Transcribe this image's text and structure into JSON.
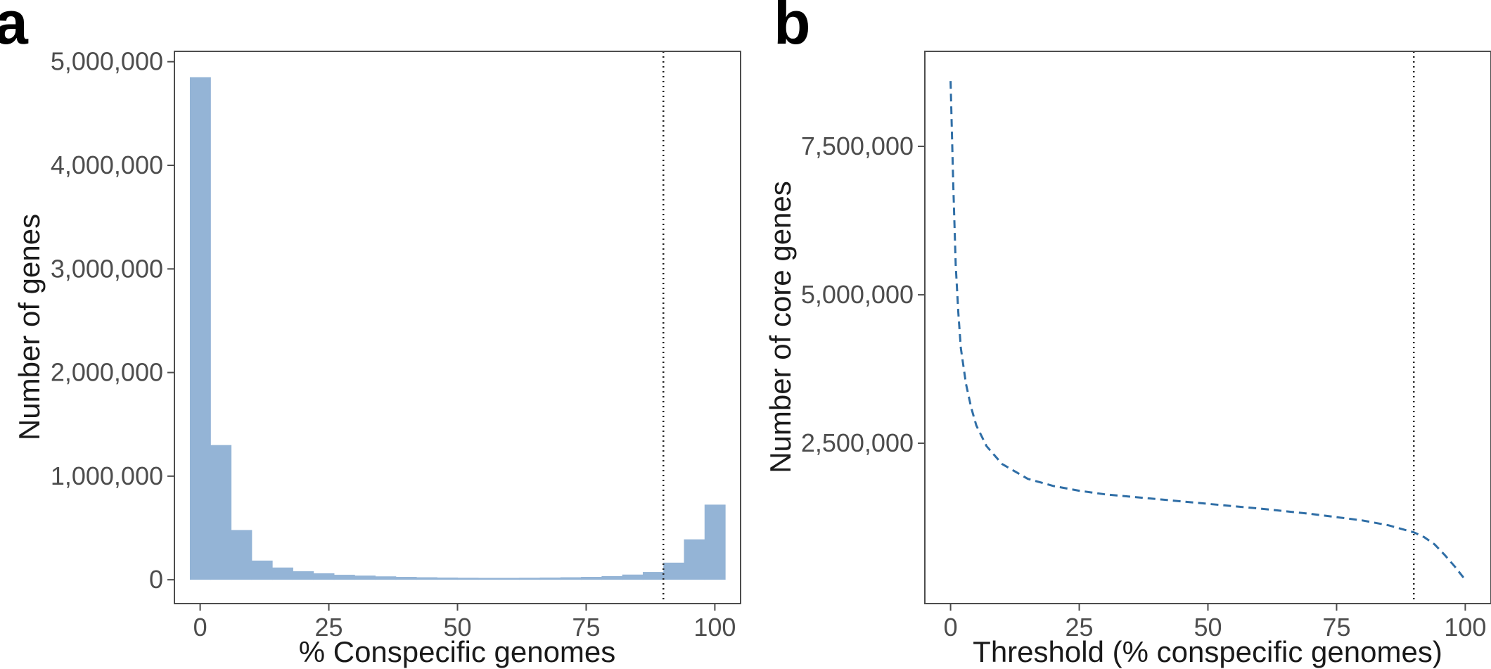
{
  "chart_data": [
    {
      "panel": "a",
      "type": "bar",
      "xlabel": "% Conspecific genomes",
      "ylabel": "Number of genes",
      "xlim": [
        -5,
        105
      ],
      "ylim": [
        -230000,
        5100000
      ],
      "xticks": [
        0,
        25,
        50,
        75,
        100
      ],
      "yticks": [
        0,
        1000000,
        2000000,
        3000000,
        4000000,
        5000000
      ],
      "ytick_labels": [
        "0",
        "1,000,000",
        "2,000,000",
        "3,000,000",
        "4,000,000",
        "5,000,000"
      ],
      "bin_width": 4,
      "bin_centers": [
        0,
        4,
        8,
        12,
        16,
        20,
        24,
        28,
        32,
        36,
        40,
        44,
        48,
        52,
        56,
        60,
        64,
        68,
        72,
        76,
        80,
        84,
        88,
        92,
        96,
        100
      ],
      "values": [
        4850000,
        1300000,
        480000,
        185000,
        118000,
        82000,
        62000,
        48000,
        40000,
        33000,
        28000,
        24000,
        21000,
        19000,
        18000,
        18000,
        19000,
        21000,
        24000,
        28000,
        35000,
        50000,
        75000,
        165000,
        390000,
        725000
      ],
      "reference_line_x": 90,
      "bar_color": "#94b4d6",
      "grid": false
    },
    {
      "panel": "b",
      "type": "line",
      "xlabel": "Threshold (% conspecific genomes)",
      "ylabel": "Number of core genes",
      "xlim": [
        -5,
        105
      ],
      "ylim": [
        -200000,
        9100000
      ],
      "xticks": [
        0,
        25,
        50,
        75,
        100
      ],
      "yticks": [
        2500000,
        5000000,
        7500000
      ],
      "ytick_labels": [
        "2,500,000",
        "5,000,000",
        "7,500,000"
      ],
      "x": [
        0,
        0.5,
        1,
        1.5,
        2,
        3,
        4,
        5,
        7,
        10,
        15,
        20,
        25,
        30,
        40,
        50,
        60,
        70,
        80,
        85,
        90,
        92,
        94,
        96,
        98,
        100
      ],
      "y": [
        8600000,
        6900000,
        5500000,
        4700000,
        4100000,
        3500000,
        3100000,
        2800000,
        2450000,
        2150000,
        1900000,
        1780000,
        1700000,
        1640000,
        1560000,
        1480000,
        1400000,
        1310000,
        1200000,
        1120000,
        1000000,
        920000,
        800000,
        620000,
        420000,
        200000
      ],
      "reference_line_x": 90,
      "line_color": "#2f6ea6",
      "line_style": "dashed",
      "grid": false
    }
  ],
  "panels": [
    {
      "letter": "a",
      "xlabel": "% Conspecific genomes",
      "ylabel": "Number of genes"
    },
    {
      "letter": "b",
      "xlabel": "Threshold (% conspecific genomes)",
      "ylabel": "Number of core genes"
    }
  ],
  "colors": {
    "bar": "#94b4d6",
    "line": "#2f6ea6",
    "frame": "#4d4d4d",
    "reference_line": "#222222"
  }
}
